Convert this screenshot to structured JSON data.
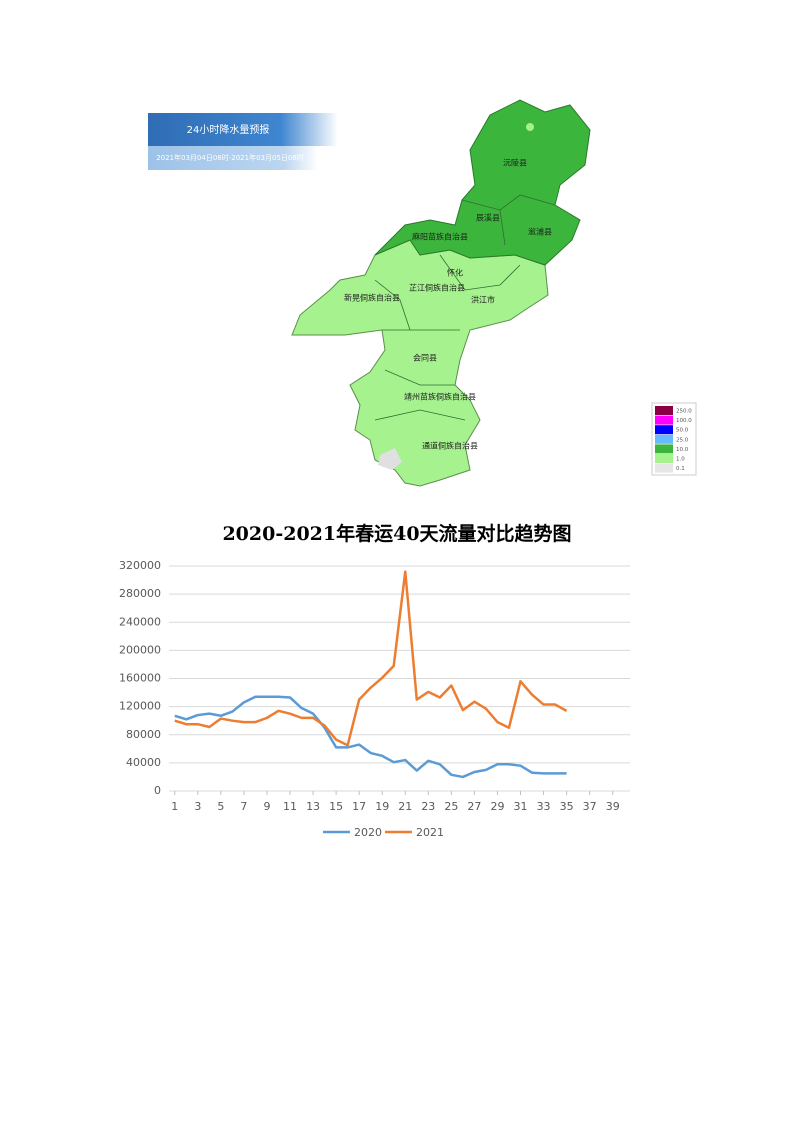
{
  "map": {
    "title": "24小时降水量预报",
    "subtitle": "2021年03月04日08时-2021年03月05日08时",
    "labels": [
      "沅陵县",
      "辰溪县",
      "溆浦县",
      "麻阳苗族自治县",
      "怀化",
      "芷江侗族自治县",
      "洪江市",
      "新晃侗族自治县",
      "会同县",
      "靖州苗族侗族自治县",
      "通道侗族自治县"
    ],
    "legend": [
      "250.0",
      "100.0",
      "50.0",
      "25.0",
      "10.0",
      "1.0",
      "0.1"
    ]
  },
  "chart_data": {
    "type": "line",
    "title": "2020-2021年春运40天流量对比趋势图",
    "x": [
      1,
      2,
      3,
      4,
      5,
      6,
      7,
      8,
      9,
      10,
      11,
      12,
      13,
      14,
      15,
      16,
      17,
      18,
      19,
      20,
      21,
      22,
      23,
      24,
      25,
      26,
      27,
      28,
      29,
      30,
      31,
      32,
      33,
      34,
      35,
      36,
      37,
      38,
      39,
      40
    ],
    "series": [
      {
        "name": "2020",
        "color": "#5b9bd5",
        "values": [
          107000,
          102000,
          108000,
          110000,
          107000,
          113000,
          126000,
          134000,
          134000,
          134000,
          133000,
          118000,
          110000,
          90000,
          62000,
          62000,
          66000,
          54000,
          50000,
          41000,
          44000,
          29000,
          43000,
          38000,
          23000,
          20000,
          27000,
          30000,
          38000,
          38000,
          36000,
          26000,
          25000,
          25000,
          25000,
          null,
          null,
          null,
          null,
          null
        ]
      },
      {
        "name": "2021",
        "color": "#ed7d31",
        "values": [
          100000,
          95000,
          95000,
          91000,
          103000,
          100000,
          98000,
          98000,
          104000,
          114000,
          110000,
          104000,
          104000,
          93000,
          73000,
          65000,
          130000,
          147000,
          161000,
          178000,
          312000,
          130000,
          141000,
          133000,
          150000,
          115000,
          127000,
          117000,
          98000,
          90000,
          156000,
          137000,
          123000,
          123000,
          114000,
          null,
          null,
          null,
          null,
          null
        ]
      }
    ],
    "xlim": [
      0.5,
      40.5
    ],
    "xticks": [
      1,
      3,
      5,
      7,
      9,
      11,
      13,
      15,
      17,
      19,
      21,
      23,
      25,
      27,
      29,
      31,
      33,
      35,
      37,
      39
    ],
    "ylim": [
      0,
      320000
    ],
    "yticks": [
      0,
      40000,
      80000,
      120000,
      160000,
      200000,
      240000,
      280000,
      320000
    ],
    "grid": true
  }
}
